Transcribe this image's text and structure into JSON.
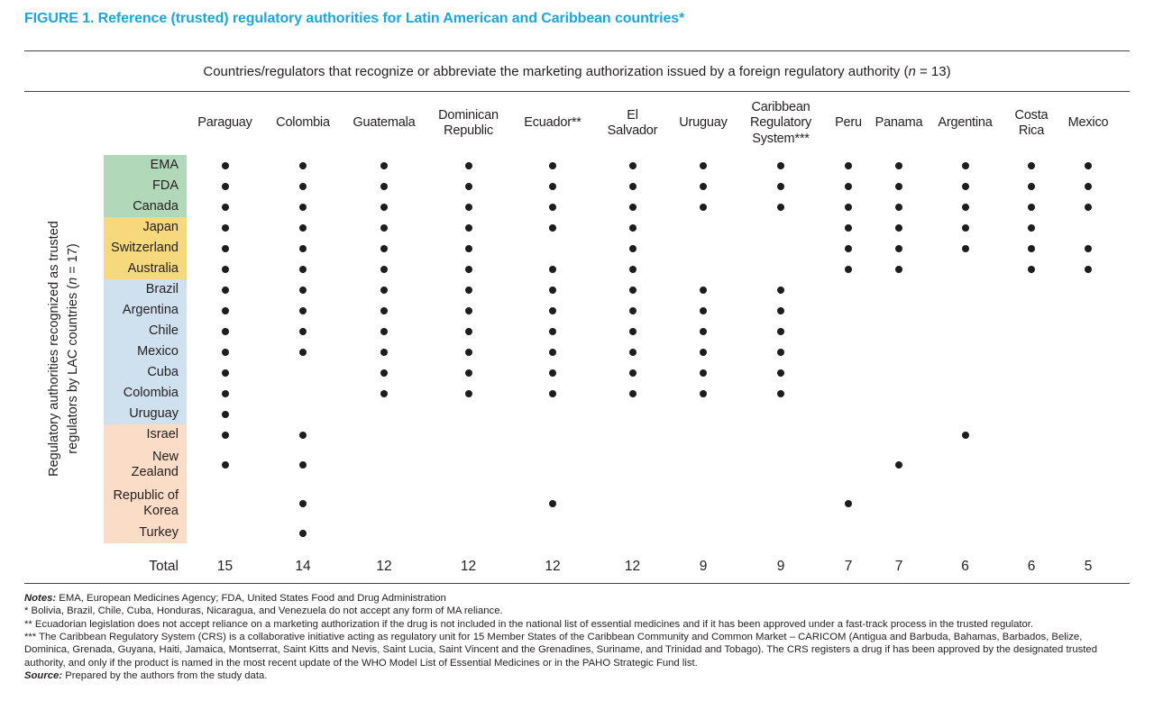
{
  "title": "FIGURE 1. Reference (trusted) regulatory authorities for Latin American and Caribbean countries*",
  "matrix_header": {
    "prefix": "Countries/regulators that recognize or abbreviate the marketing authorization issued by a foreign regulatory authority (",
    "n": "n",
    "suffix": " = 13)"
  },
  "y_axis": {
    "line1": "Regulatory authorities recognized as trusted",
    "line2_prefix": "regulators by LAC countries (",
    "n": "n",
    "line2_suffix": " = 17)"
  },
  "colors": {
    "title_accent": "#1ba7dc",
    "dot": "#1d1d1d",
    "rule": "#444444"
  },
  "group_colors": {
    "green": "#b2d8ba",
    "yellow": "#f6d97c",
    "blue": "#cfe1ef",
    "peach": "#fadcc7"
  },
  "chart_data": {
    "type": "heatmap",
    "title": "FIGURE 1. Reference (trusted) regulatory authorities for Latin American and Caribbean countries*",
    "x_header": "Countries/regulators that recognize or abbreviate the marketing authorization issued by a foreign regulatory authority (n = 13)",
    "y_header": "Regulatory authorities recognized as trusted regulators by LAC countries (n = 17)",
    "columns": [
      {
        "label": "Paraguay"
      },
      {
        "label": "Colombia"
      },
      {
        "label": "Guatemala"
      },
      {
        "label": "Dominican\nRepublic"
      },
      {
        "label": "Ecuador**"
      },
      {
        "label": "El\nSalvador"
      },
      {
        "label": "Uruguay"
      },
      {
        "label": "Caribbean\nRegulatory\nSystem***"
      },
      {
        "label": "Peru"
      },
      {
        "label": "Panama"
      },
      {
        "label": "Argentina"
      },
      {
        "label": "Costa\nRica"
      },
      {
        "label": "Mexico"
      }
    ],
    "rows": [
      {
        "label": "EMA",
        "group": "green",
        "dots": [
          1,
          1,
          1,
          1,
          1,
          1,
          1,
          1,
          1,
          1,
          1,
          1,
          1
        ]
      },
      {
        "label": "FDA",
        "group": "green",
        "dots": [
          1,
          1,
          1,
          1,
          1,
          1,
          1,
          1,
          1,
          1,
          1,
          1,
          1
        ]
      },
      {
        "label": "Canada",
        "group": "green",
        "dots": [
          1,
          1,
          1,
          1,
          1,
          1,
          1,
          1,
          1,
          1,
          1,
          1,
          1
        ]
      },
      {
        "label": "Japan",
        "group": "yellow",
        "dots": [
          1,
          1,
          1,
          1,
          1,
          1,
          0,
          0,
          1,
          1,
          1,
          1,
          0
        ]
      },
      {
        "label": "Switzerland",
        "group": "yellow",
        "dots": [
          1,
          1,
          1,
          1,
          0,
          1,
          0,
          0,
          1,
          1,
          1,
          1,
          1
        ]
      },
      {
        "label": "Australia",
        "group": "yellow",
        "dots": [
          1,
          1,
          1,
          1,
          1,
          1,
          0,
          0,
          1,
          1,
          0,
          1,
          1
        ]
      },
      {
        "label": "Brazil",
        "group": "blue",
        "dots": [
          1,
          1,
          1,
          1,
          1,
          1,
          1,
          1,
          0,
          0,
          0,
          0,
          0
        ]
      },
      {
        "label": "Argentina",
        "group": "blue",
        "dots": [
          1,
          1,
          1,
          1,
          1,
          1,
          1,
          1,
          0,
          0,
          0,
          0,
          0
        ]
      },
      {
        "label": "Chile",
        "group": "blue",
        "dots": [
          1,
          1,
          1,
          1,
          1,
          1,
          1,
          1,
          0,
          0,
          0,
          0,
          0
        ]
      },
      {
        "label": "Mexico",
        "group": "blue",
        "dots": [
          1,
          1,
          1,
          1,
          1,
          1,
          1,
          1,
          0,
          0,
          0,
          0,
          0
        ]
      },
      {
        "label": "Cuba",
        "group": "blue",
        "dots": [
          1,
          0,
          1,
          1,
          1,
          1,
          1,
          1,
          0,
          0,
          0,
          0,
          0
        ]
      },
      {
        "label": "Colombia",
        "group": "blue",
        "dots": [
          1,
          0,
          1,
          1,
          1,
          1,
          1,
          1,
          0,
          0,
          0,
          0,
          0
        ]
      },
      {
        "label": "Uruguay",
        "group": "blue",
        "dots": [
          1,
          0,
          0,
          0,
          0,
          0,
          0,
          0,
          0,
          0,
          0,
          0,
          0
        ]
      },
      {
        "label": "Israel",
        "group": "peach",
        "dots": [
          1,
          1,
          0,
          0,
          0,
          0,
          0,
          0,
          0,
          0,
          1,
          0,
          0
        ]
      },
      {
        "label": "New\nZealand",
        "group": "peach",
        "dots": [
          1,
          1,
          0,
          0,
          0,
          0,
          0,
          0,
          0,
          1,
          0,
          0,
          0
        ]
      },
      {
        "label": "Republic of\nKorea",
        "group": "peach",
        "dots": [
          0,
          1,
          0,
          0,
          1,
          0,
          0,
          0,
          1,
          0,
          0,
          0,
          0
        ]
      },
      {
        "label": "Turkey",
        "group": "peach",
        "dots": [
          0,
          1,
          0,
          0,
          0,
          0,
          0,
          0,
          0,
          0,
          0,
          0,
          0
        ]
      }
    ],
    "totals": {
      "label": "Total",
      "values": [
        15,
        14,
        12,
        12,
        12,
        12,
        9,
        9,
        7,
        7,
        6,
        6,
        5
      ]
    }
  },
  "notes": {
    "lead_label": "Notes:",
    "lead_text": " EMA, European Medicines Agency; FDA, United States Food and Drug Administration",
    "note1": "* Bolivia, Brazil, Chile, Cuba, Honduras, Nicaragua, and Venezuela do not accept any form of MA reliance.",
    "note2": "** Ecuadorian legislation does not accept reliance on a marketing authorization if the drug is not included in the national list of essential medicines and if it has been approved under a fast-track process in the trusted regulator.",
    "note3": "*** The Caribbean Regulatory System (CRS) is a collaborative initiative acting as regulatory unit for 15 Member States of the Caribbean Community and Common Market – CARICOM (Antigua and Barbuda, Bahamas, Barbados, Belize, Dominica, Grenada, Guyana, Haiti, Jamaica, Montserrat, Saint Kitts and Nevis, Saint Lucia, Saint Vincent and the Grenadines, Suriname, and Trinidad and Tobago). The CRS registers a drug if has been approved by the designated trusted authority, and only if the product is named in the most recent update of the WHO Model List of Essential Medicines or in the PAHO Strategic Fund list.",
    "source_label": "Source:",
    "source_text": " Prepared by the authors from the study data."
  }
}
